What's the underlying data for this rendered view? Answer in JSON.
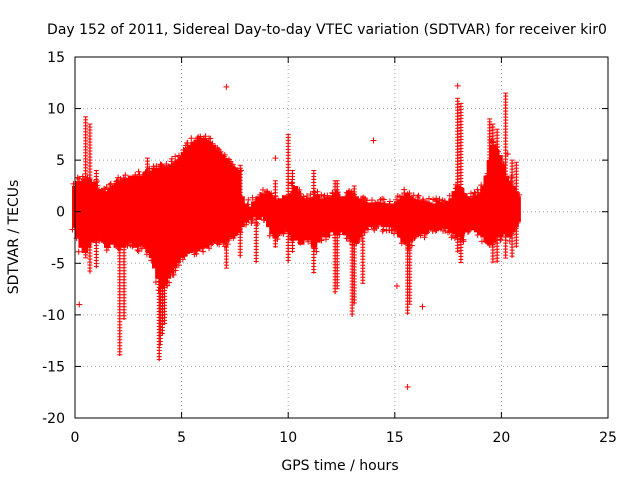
{
  "chart_data": {
    "type": "scatter",
    "title": "Day 152 of 2011, Sidereal Day-to-day VTEC variation (SDTVAR) for receiver kir0",
    "xlabel": "GPS time / hours",
    "ylabel": "SDTVAR / TECUs",
    "xlim": [
      0,
      25
    ],
    "ylim": [
      -20,
      15
    ],
    "xticks": [
      0,
      5,
      10,
      15,
      20,
      25
    ],
    "yticks": [
      -20,
      -15,
      -10,
      -5,
      0,
      5,
      10,
      15
    ],
    "grid": true,
    "marker": "+",
    "colors": {
      "series": "#ff0000",
      "grid": "#a0a0a0",
      "axis": "#000000"
    },
    "bands": [
      [
        0.0,
        -1.5,
        2.5
      ],
      [
        0.15,
        -2.5,
        3.0
      ],
      [
        0.3,
        -3.5,
        2.8
      ],
      [
        0.45,
        -4.0,
        3.2
      ],
      [
        0.6,
        -3.5,
        3.0
      ],
      [
        0.75,
        -3.0,
        2.5
      ],
      [
        0.9,
        -2.5,
        2.8
      ],
      [
        1.05,
        -2.8,
        2.2
      ],
      [
        1.2,
        -2.5,
        2.0
      ],
      [
        1.35,
        -3.0,
        1.8
      ],
      [
        1.5,
        -3.5,
        2.0
      ],
      [
        1.65,
        -3.2,
        2.3
      ],
      [
        1.8,
        -3.0,
        2.5
      ],
      [
        1.95,
        -3.5,
        2.8
      ],
      [
        2.1,
        -3.0,
        3.0
      ],
      [
        2.25,
        -3.5,
        2.7
      ],
      [
        2.4,
        -3.2,
        3.2
      ],
      [
        2.55,
        -2.8,
        3.0
      ],
      [
        2.7,
        -3.0,
        3.5
      ],
      [
        2.85,
        -3.5,
        3.3
      ],
      [
        3.0,
        -3.0,
        3.5
      ],
      [
        3.15,
        -3.3,
        3.4
      ],
      [
        3.3,
        -3.5,
        3.8
      ],
      [
        3.45,
        -4.0,
        3.6
      ],
      [
        3.6,
        -4.5,
        4.0
      ],
      [
        3.75,
        -5.5,
        4.2
      ],
      [
        3.9,
        -6.5,
        4.2
      ],
      [
        4.05,
        -7.5,
        4.3
      ],
      [
        4.2,
        -7.0,
        4.4
      ],
      [
        4.35,
        -6.5,
        4.5
      ],
      [
        4.5,
        -6.0,
        4.6
      ],
      [
        4.65,
        -5.5,
        4.8
      ],
      [
        4.8,
        -5.0,
        5.0
      ],
      [
        4.95,
        -4.5,
        5.3
      ],
      [
        5.1,
        -4.3,
        5.8
      ],
      [
        5.25,
        -4.0,
        6.2
      ],
      [
        5.4,
        -4.0,
        6.5
      ],
      [
        5.55,
        -3.8,
        6.8
      ],
      [
        5.7,
        -3.8,
        7.0
      ],
      [
        5.85,
        -3.5,
        7.1
      ],
      [
        6.0,
        -3.5,
        7.1
      ],
      [
        6.15,
        -3.5,
        7.0
      ],
      [
        6.3,
        -3.2,
        6.8
      ],
      [
        6.45,
        -3.0,
        6.5
      ],
      [
        6.6,
        -3.0,
        6.0
      ],
      [
        6.75,
        -3.0,
        5.8
      ],
      [
        6.9,
        -3.0,
        5.5
      ],
      [
        7.05,
        -2.8,
        5.2
      ],
      [
        7.2,
        -2.5,
        4.8
      ],
      [
        7.35,
        -2.5,
        4.5
      ],
      [
        7.5,
        -2.3,
        4.3
      ],
      [
        7.65,
        -2.0,
        4.0
      ],
      [
        7.8,
        -1.5,
        1.5
      ],
      [
        8.0,
        -1.0,
        0.8
      ],
      [
        8.2,
        -0.8,
        0.5
      ],
      [
        8.4,
        -0.5,
        1.0
      ],
      [
        8.6,
        -0.8,
        1.5
      ],
      [
        8.8,
        -0.5,
        1.8
      ],
      [
        8.95,
        -0.8,
        1.2
      ],
      [
        9.1,
        -1.5,
        1.8
      ],
      [
        9.25,
        -2.2,
        1.5
      ],
      [
        9.4,
        -2.5,
        1.2
      ],
      [
        9.55,
        -2.0,
        1.0
      ],
      [
        9.7,
        -1.8,
        1.3
      ],
      [
        9.85,
        -1.5,
        1.6
      ],
      [
        10.0,
        -2.0,
        1.2
      ],
      [
        10.15,
        -2.3,
        1.8
      ],
      [
        10.3,
        -2.5,
        2.5
      ],
      [
        10.45,
        -2.8,
        2.0
      ],
      [
        10.6,
        -3.2,
        1.5
      ],
      [
        10.75,
        -2.8,
        1.2
      ],
      [
        10.9,
        -2.5,
        1.0
      ],
      [
        11.05,
        -2.8,
        1.4
      ],
      [
        11.2,
        -3.5,
        1.3
      ],
      [
        11.35,
        -3.0,
        1.6
      ],
      [
        11.5,
        -2.5,
        1.3
      ],
      [
        11.65,
        -2.0,
        1.1
      ],
      [
        11.8,
        -2.5,
        1.4
      ],
      [
        11.95,
        -2.0,
        1.5
      ],
      [
        12.1,
        -1.8,
        1.4
      ],
      [
        12.25,
        -2.3,
        1.8
      ],
      [
        12.4,
        -2.0,
        1.5
      ],
      [
        12.55,
        -1.8,
        1.3
      ],
      [
        12.7,
        -2.3,
        1.5
      ],
      [
        12.85,
        -2.5,
        2.0
      ],
      [
        13.0,
        -2.8,
        1.8
      ],
      [
        13.15,
        -3.0,
        1.5
      ],
      [
        13.3,
        -2.5,
        1.3
      ],
      [
        13.45,
        -2.0,
        1.0
      ],
      [
        13.6,
        -1.8,
        0.8
      ],
      [
        13.75,
        -1.5,
        0.9
      ],
      [
        13.9,
        -1.3,
        0.8
      ],
      [
        14.05,
        -1.5,
        0.9
      ],
      [
        14.2,
        -1.2,
        0.8
      ],
      [
        14.35,
        -1.3,
        0.9
      ],
      [
        14.5,
        -1.5,
        0.8
      ],
      [
        14.65,
        -1.4,
        0.7
      ],
      [
        14.8,
        -1.5,
        0.8
      ],
      [
        14.95,
        -1.6,
        0.7
      ],
      [
        15.1,
        -1.8,
        1.0
      ],
      [
        15.25,
        -2.5,
        1.2
      ],
      [
        15.4,
        -3.0,
        1.5
      ],
      [
        15.55,
        -3.2,
        1.8
      ],
      [
        15.7,
        -3.0,
        1.5
      ],
      [
        15.85,
        -2.5,
        1.3
      ],
      [
        16.0,
        -2.3,
        1.2
      ],
      [
        16.15,
        -2.0,
        1.0
      ],
      [
        16.3,
        -2.2,
        1.1
      ],
      [
        16.45,
        -2.0,
        1.0
      ],
      [
        16.6,
        -1.8,
        0.9
      ],
      [
        16.75,
        -1.6,
        0.8
      ],
      [
        16.9,
        -1.5,
        0.8
      ],
      [
        17.05,
        -1.8,
        1.0
      ],
      [
        17.2,
        -1.6,
        0.9
      ],
      [
        17.35,
        -1.5,
        0.8
      ],
      [
        17.5,
        -1.7,
        1.0
      ],
      [
        17.65,
        -2.0,
        1.3
      ],
      [
        17.8,
        -2.2,
        2.0
      ],
      [
        17.95,
        -2.5,
        2.5
      ],
      [
        18.1,
        -2.5,
        2.3
      ],
      [
        18.25,
        -2.0,
        1.8
      ],
      [
        18.4,
        -1.8,
        1.5
      ],
      [
        18.55,
        -1.5,
        1.2
      ],
      [
        18.7,
        -1.8,
        1.4
      ],
      [
        18.85,
        -2.0,
        1.6
      ],
      [
        19.0,
        -2.3,
        1.8
      ],
      [
        19.15,
        -2.5,
        2.5
      ],
      [
        19.3,
        -3.0,
        3.5
      ],
      [
        19.45,
        -3.2,
        5.0
      ],
      [
        19.6,
        -3.0,
        6.5
      ],
      [
        19.75,
        -2.5,
        6.0
      ],
      [
        19.9,
        -2.5,
        5.5
      ],
      [
        20.05,
        -2.2,
        4.5
      ],
      [
        20.2,
        -2.0,
        3.5
      ],
      [
        20.35,
        -2.5,
        3.0
      ],
      [
        20.5,
        -2.0,
        2.5
      ],
      [
        20.65,
        -1.5,
        2.0
      ],
      [
        20.75,
        -1.0,
        1.5
      ]
    ],
    "spikes": [
      [
        0.5,
        -4.5,
        9.2
      ],
      [
        0.7,
        -6.0,
        8.5
      ],
      [
        1.0,
        -5.5,
        4.0
      ],
      [
        2.1,
        -14.0,
        3.0
      ],
      [
        2.3,
        -10.5,
        3.0
      ],
      [
        3.4,
        -4.0,
        5.2
      ],
      [
        3.95,
        -14.5,
        4.0
      ],
      [
        4.0,
        -13.0,
        4.0
      ],
      [
        4.1,
        -12.0,
        4.2
      ],
      [
        4.2,
        -11.0,
        4.3
      ],
      [
        7.1,
        -5.5,
        5.0
      ],
      [
        7.75,
        -4.5,
        4.5
      ],
      [
        8.5,
        -5.0,
        1.0
      ],
      [
        9.4,
        -3.5,
        3.0
      ],
      [
        10.0,
        -5.0,
        7.5
      ],
      [
        10.2,
        -4.0,
        4.0
      ],
      [
        11.2,
        -6.0,
        4.0
      ],
      [
        12.2,
        -8.0,
        3.0
      ],
      [
        12.3,
        -7.5,
        3.0
      ],
      [
        13.0,
        -10.2,
        2.0
      ],
      [
        13.1,
        -9.0,
        2.5
      ],
      [
        13.5,
        -7.0,
        1.5
      ],
      [
        15.6,
        -10.0,
        1.8
      ],
      [
        15.7,
        -9.0,
        1.5
      ],
      [
        17.95,
        -4.0,
        11.0
      ],
      [
        18.1,
        -5.0,
        10.5
      ],
      [
        19.45,
        -3.5,
        9.0
      ],
      [
        19.6,
        -5.0,
        8.5
      ],
      [
        19.8,
        -5.0,
        8.0
      ],
      [
        20.2,
        -4.5,
        11.5
      ],
      [
        20.5,
        -4.5,
        5.0
      ],
      [
        20.7,
        -3.5,
        4.8
      ]
    ],
    "outliers": [
      [
        7.1,
        12.1
      ],
      [
        17.95,
        12.2
      ],
      [
        14.0,
        6.9
      ],
      [
        15.1,
        -7.2
      ],
      [
        15.6,
        -17.0
      ],
      [
        16.3,
        -9.2
      ],
      [
        0.2,
        -9.0
      ],
      [
        20.3,
        5.6
      ],
      [
        9.4,
        5.2
      ]
    ]
  }
}
